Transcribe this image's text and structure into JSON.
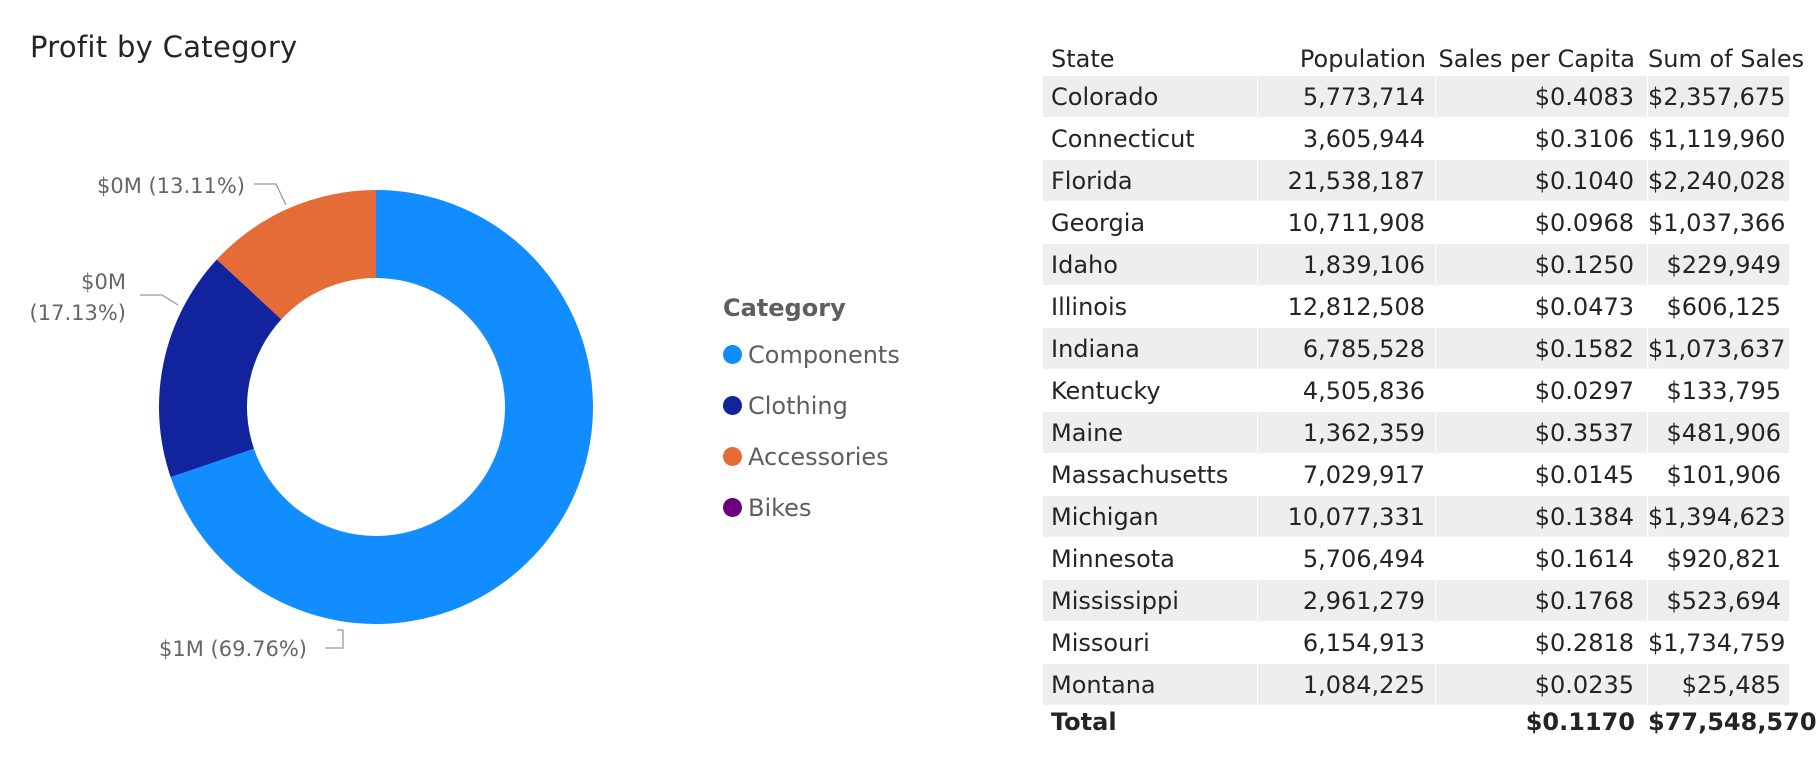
{
  "chart_data": [
    {
      "type": "pie",
      "title": "Profit by Category",
      "legend": {
        "title": "Category",
        "placement": "right"
      },
      "categories": [
        "Components",
        "Clothing",
        "Accessories",
        "Bikes"
      ],
      "colors": [
        "#118DFF",
        "#12239E",
        "#E66C37",
        "#6B007B"
      ],
      "percent": [
        69.76,
        17.13,
        13.11,
        0.0
      ],
      "slice_labels": [
        "$1M (69.76%)",
        "$0M (17.13%)",
        "$0M (13.11%)",
        ""
      ]
    },
    {
      "type": "table",
      "columns": [
        "State",
        "Population",
        "Sales per Capita",
        "Sum of Sales"
      ],
      "sort": {
        "column": "State",
        "direction": "ascending"
      },
      "rows": [
        [
          "Colorado",
          "5,773,714",
          "$0.4083",
          "$2,357,675"
        ],
        [
          "Connecticut",
          "3,605,944",
          "$0.3106",
          "$1,119,960"
        ],
        [
          "Florida",
          "21,538,187",
          "$0.1040",
          "$2,240,028"
        ],
        [
          "Georgia",
          "10,711,908",
          "$0.0968",
          "$1,037,366"
        ],
        [
          "Idaho",
          "1,839,106",
          "$0.1250",
          "$229,949"
        ],
        [
          "Illinois",
          "12,812,508",
          "$0.0473",
          "$606,125"
        ],
        [
          "Indiana",
          "6,785,528",
          "$0.1582",
          "$1,073,637"
        ],
        [
          "Kentucky",
          "4,505,836",
          "$0.0297",
          "$133,795"
        ],
        [
          "Maine",
          "1,362,359",
          "$0.3537",
          "$481,906"
        ],
        [
          "Massachusetts",
          "7,029,917",
          "$0.0145",
          "$101,906"
        ],
        [
          "Michigan",
          "10,077,331",
          "$0.1384",
          "$1,394,623"
        ],
        [
          "Minnesota",
          "5,706,494",
          "$0.1614",
          "$920,821"
        ],
        [
          "Mississippi",
          "2,961,279",
          "$0.1768",
          "$523,694"
        ],
        [
          "Missouri",
          "6,154,913",
          "$0.2818",
          "$1,734,759"
        ],
        [
          "Montana",
          "1,084,225",
          "$0.0235",
          "$25,485"
        ]
      ],
      "total": {
        "label": "Total",
        "population": "",
        "sales_per_capita": "$0.1170",
        "sum_of_sales": "$77,548,570"
      }
    }
  ]
}
